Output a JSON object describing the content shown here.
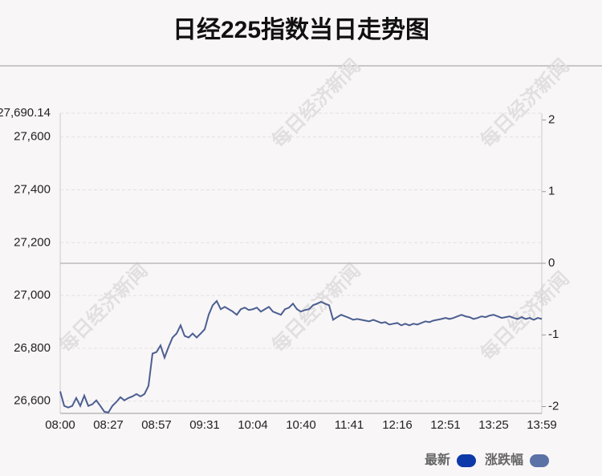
{
  "chart_data": {
    "type": "line",
    "title": "日经225指数当日走势图",
    "watermark": "每日经济新闻",
    "categories": [
      "08:00",
      null,
      null,
      null,
      null,
      null,
      null,
      null,
      null,
      null,
      null,
      null,
      "08:27",
      null,
      null,
      null,
      null,
      null,
      null,
      null,
      null,
      null,
      null,
      null,
      "08:57",
      null,
      null,
      null,
      null,
      null,
      null,
      null,
      null,
      null,
      null,
      null,
      "09:31",
      null,
      null,
      null,
      null,
      null,
      null,
      null,
      null,
      null,
      null,
      null,
      "10:04",
      null,
      null,
      null,
      null,
      null,
      null,
      null,
      null,
      null,
      null,
      null,
      "10:40",
      null,
      null,
      null,
      null,
      null,
      null,
      null,
      null,
      null,
      null,
      null,
      "11:41",
      null,
      null,
      null,
      null,
      null,
      null,
      null,
      null,
      null,
      null,
      null,
      "12:16",
      null,
      null,
      null,
      null,
      null,
      null,
      null,
      null,
      null,
      null,
      null,
      "12:51",
      null,
      null,
      null,
      null,
      null,
      null,
      null,
      null,
      null,
      null,
      null,
      "13:25",
      null,
      null,
      null,
      null,
      null,
      null,
      null,
      null,
      null,
      null,
      null,
      "13:59"
    ],
    "series": [
      {
        "name": "最新",
        "color": "#4b5f90",
        "values": [
          26637,
          26582,
          26576,
          26582,
          26612,
          26582,
          26621,
          26582,
          26588,
          26603,
          26582,
          26560,
          26557,
          26582,
          26597,
          26615,
          26603,
          26612,
          26618,
          26627,
          26618,
          26627,
          26658,
          26780,
          26786,
          26811,
          26765,
          26805,
          26841,
          26856,
          26887,
          26847,
          26841,
          26856,
          26841,
          26856,
          26872,
          26927,
          26963,
          26979,
          26948,
          26957,
          26948,
          26939,
          26927,
          26948,
          26954,
          26945,
          26948,
          26954,
          26939,
          26948,
          26957,
          26939,
          26933,
          26927,
          26948,
          26954,
          26969,
          26948,
          26939,
          26945,
          26948,
          26963,
          26969,
          26976,
          26969,
          26963,
          26908,
          26918,
          26927,
          26921,
          26915,
          26908,
          26911,
          26908,
          26905,
          26902,
          26908,
          26902,
          26896,
          26899,
          26890,
          26893,
          26896,
          26887,
          26893,
          26887,
          26893,
          26890,
          26896,
          26902,
          26899,
          26905,
          26908,
          26911,
          26915,
          26911,
          26915,
          26921,
          26927,
          26921,
          26918,
          26911,
          26915,
          26921,
          26918,
          26924,
          26927,
          26921,
          26915,
          26918,
          26921,
          26915,
          26911,
          26918,
          26911,
          26915,
          26908,
          26915,
          26911
        ]
      }
    ],
    "legend": [
      {
        "name": "最新",
        "color": "#0d3aa8"
      },
      {
        "name": "涨跌幅",
        "color": "#5a72a6"
      }
    ],
    "ylim": [
      26553.66,
      27690.14
    ],
    "yticks": [
      {
        "value": 26600,
        "label": "26,600"
      },
      {
        "value": 26800,
        "label": "26,800"
      },
      {
        "value": 27000,
        "label": "27,000"
      },
      {
        "value": 27200,
        "label": "27,200"
      },
      {
        "value": 27400,
        "label": "27,400"
      },
      {
        "value": 27600,
        "label": "27,600"
      },
      {
        "value": 27690.14,
        "label": "27,690.14"
      }
    ],
    "y2lim": [
      -2.095,
      2.095
    ],
    "y2ticks": [
      -2,
      -1,
      0,
      1,
      2
    ],
    "grid": true
  }
}
